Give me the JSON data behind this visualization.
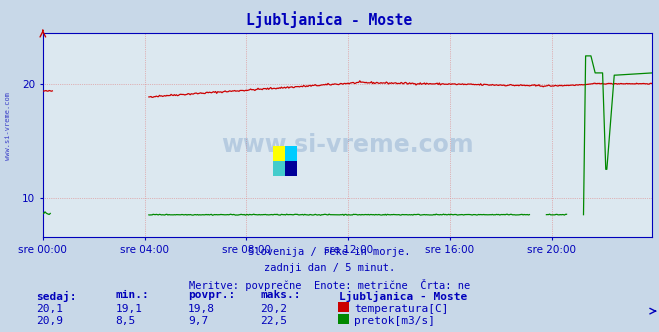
{
  "title": "Ljubljanica - Moste",
  "bg_color": "#c8d8e8",
  "plot_bg_color": "#dce8f0",
  "grid_color": "#e08080",
  "x_ticks_labels": [
    "sre 00:00",
    "sre 04:00",
    "sre 08:00",
    "sre 12:00",
    "sre 16:00",
    "sre 20:00"
  ],
  "x_ticks_pos": [
    0,
    96,
    192,
    288,
    384,
    480
  ],
  "total_points": 576,
  "y_ticks": [
    10,
    20
  ],
  "ylim": [
    6.5,
    24.5
  ],
  "temp_color": "#cc0000",
  "flow_color": "#008800",
  "axis_color": "#0000bb",
  "title_color": "#0000bb",
  "text_color": "#0000bb",
  "watermark": "www.si-vreme.com",
  "subtitle1": "Slovenija / reke in morje.",
  "subtitle2": "zadnji dan / 5 minut.",
  "subtitle3": "Meritve: povprečne  Enote: metrične  Črta: ne",
  "legend_title": "Ljubljanica - Moste",
  "legend_row1": [
    "20,1",
    "19,1",
    "19,8",
    "20,2",
    "temperatura[C]"
  ],
  "legend_row2": [
    "20,9",
    "8,5",
    "9,7",
    "22,5",
    "pretok[m3/s]"
  ],
  "legend_headers": [
    "sedaj:",
    "min.:",
    "povpr.:",
    "maks.:"
  ]
}
